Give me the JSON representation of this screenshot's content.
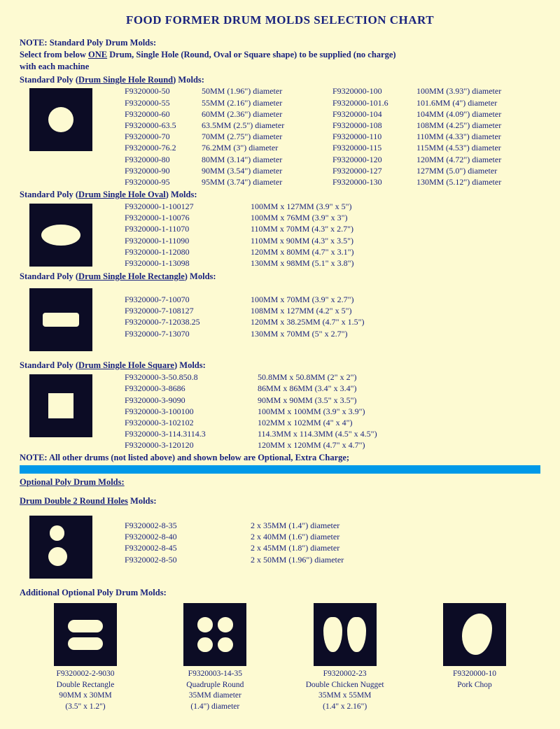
{
  "colors": {
    "bg": "#fdfad2",
    "text": "#1a237e",
    "icon_bg": "#0c0c25",
    "bar": "#0099e8"
  },
  "title": "FOOD FORMER DRUM MOLDS SELECTION CHART",
  "note_line1": "NOTE: Standard Poly Drum Molds:",
  "note_line2a": "Select from below ",
  "note_line2_one": "ONE",
  "note_line2b": " Drum, Single Hole (Round, Oval or Square shape) to be supplied (no charge)",
  "note_line3": "with each machine",
  "round": {
    "head_pre": "Standard Poly (",
    "head_ul": "Drum Single Hole Round",
    "head_post": ") Molds:",
    "left_pn": [
      "F9320000-50",
      "F9320000-55",
      "F9320000-60",
      "F9320000-63.5",
      "F9320000-70",
      "F9320000-76.2",
      "F9320000-80",
      "F9320000-90",
      "F9320000-95"
    ],
    "left_sz": [
      "50MM  (1.96\") diameter",
      "55MM (2.16\") diameter",
      "60MM (2.36\") diameter",
      "63.5MM (2.5\") diameter",
      "70MM (2.75\") diameter",
      "76.2MM (3\") diameter",
      "80MM (3.14\") diameter",
      "90MM (3.54\") diameter",
      "95MM (3.74\") diameter"
    ],
    "right_pn": [
      "F9320000-100",
      "F9320000-101.6",
      "F9320000-104",
      "F9320000-108",
      "F9320000-110",
      "F9320000-115",
      "F9320000-120",
      "F9320000-127",
      "F9320000-130"
    ],
    "right_sz": [
      "100MM (3.93\") diameter",
      "101.6MM (4\") diameter",
      "104MM (4.09\") diameter",
      "108MM (4.25\") diameter",
      "110MM (4.33\") diameter",
      "115MM (4.53\") diameter",
      "120MM (4.72\") diameter",
      "127MM (5.0\") diameter",
      "130MM (5.12\") diameter"
    ]
  },
  "oval": {
    "head_pre": "Standard Poly (",
    "head_ul": "Drum Single Hole Oval",
    "head_post": ") Molds:",
    "pn": [
      "F9320000-1-100127",
      "F9320000-1-10076",
      "F9320000-1-11070",
      "F9320000-1-11090",
      "F9320000-1-12080",
      "F9320000-1-13098"
    ],
    "sz": [
      "100MM x 127MM (3.9\" x 5\")",
      "100MM x 76MM (3.9\" x 3\")",
      "110MM x 70MM (4.3\" x 2.7\")",
      "110MM x 90MM (4.3\" x 3.5\")",
      "120MM x 80MM (4.7\" x 3.1\")",
      "130MM x 98MM (5.1\" x 3.8\")"
    ]
  },
  "rect": {
    "head_pre": "Standard Poly (",
    "head_ul": "Drum Single Hole Rectangle",
    "head_post": ") Molds:",
    "pn": [
      "F9320000-7-10070",
      "F9320000-7-108127",
      "F9320000-7-12038.25",
      "F9320000-7-13070"
    ],
    "sz": [
      "100MM x 70MM (3.9\" x 2.7\")",
      "108MM x 127MM (4.2\" x 5\")",
      "120MM x 38.25MM (4.7\" x 1.5\")",
      "130MM x 70MM (5\" x 2.7\")"
    ]
  },
  "square": {
    "head_pre": "Standard Poly (",
    "head_ul": "Drum Single Hole Square",
    "head_post": ") Molds:",
    "pn": [
      "F9320000-3-50.850.8",
      "F9320000-3-8686",
      "F9320000-3-9090",
      "F9320000-3-100100",
      "F9320000-3-102102",
      "F9320000-3-114.3114.3",
      "F9320000-3-120120"
    ],
    "sz": [
      "50.8MM x 50.8MM (2\" x 2\")",
      "86MM x 86MM (3.4\" x 3.4\")",
      "90MM x 90MM (3.5\" x 3.5\")",
      "100MM x 100MM (3.9\" x 3.9\")",
      "102MM x 102MM (4\" x 4\")",
      "114.3MM x 114.3MM (4.5\" x 4.5\")",
      "120MM x 120MM (4.7\" x 4.7\")"
    ]
  },
  "note_optional": "NOTE: All other drums (not listed above) and shown below are Optional, Extra Charge;",
  "optional_head": "Optional Poly Drum Molds:",
  "double_round": {
    "head_ul": "Drum Double 2 Round Holes",
    "head_post": " Molds:",
    "pn": [
      "F9320002-8-35",
      "F9320002-8-40",
      "F9320002-8-45",
      "F9320002-8-50"
    ],
    "sz": [
      "2 x 35MM (1.4\") diameter",
      "2 x 40MM (1.6\") diameter",
      "2 x 45MM (1.8\") diameter",
      "2 x 50MM (1.96\") diameter"
    ]
  },
  "additional_head": "Additional Optional Poly Drum Molds:",
  "additional": [
    {
      "pn": "F9320002-2-9030",
      "name": "Double Rectangle",
      "l2": "90MM x 30MM",
      "l3": "(3.5\" x 1.2\")"
    },
    {
      "pn": "F9320003-14-35",
      "name": "Quadruple Round",
      "l2": "35MM diameter",
      "l3": "(1.4\") diameter"
    },
    {
      "pn": "F9320002-23",
      "name": "Double Chicken Nugget",
      "l2": "35MM x 55MM",
      "l3": "(1.4\" x 2.16\")"
    },
    {
      "pn": "F9320000-10",
      "name": "Pork Chop",
      "l2": "",
      "l3": ""
    }
  ]
}
